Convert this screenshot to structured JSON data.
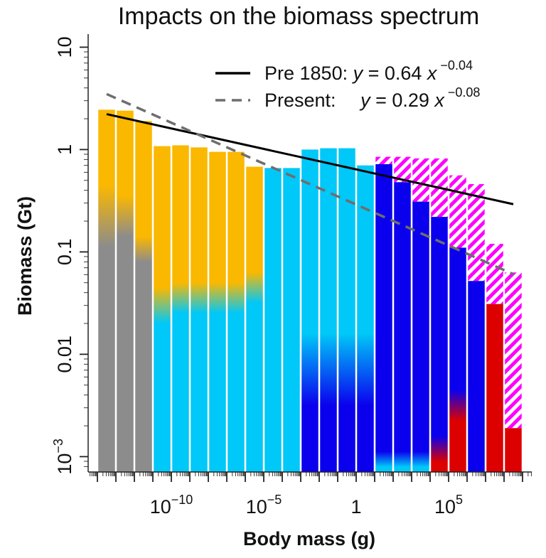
{
  "chart_data": {
    "type": "bar",
    "title": "Impacts on the biomass spectrum",
    "xlabel": "Body mass (g)",
    "ylabel": "Biomass (Gt)",
    "x_scale": "log10",
    "y_scale": "log10",
    "xlim_log10": [
      -14.5,
      9.5
    ],
    "ylim_log10": [
      -3.15,
      1.1
    ],
    "x_ticks": [
      {
        "base": "10",
        "exp": "−10",
        "log": -10
      },
      {
        "base": "10",
        "exp": "−5",
        "log": -5
      },
      {
        "base": "1",
        "exp": "",
        "log": 0
      },
      {
        "base": "10",
        "exp": "5",
        "log": 5
      }
    ],
    "y_ticks": [
      {
        "base": "10",
        "exp": "",
        "log": 1
      },
      {
        "base": "1",
        "exp": "",
        "log": 0
      },
      {
        "base": "0.1",
        "exp": "",
        "log": -1
      },
      {
        "base": "0.01",
        "exp": "",
        "log": -2
      },
      {
        "base": "10",
        "exp": "−3",
        "log": -3
      }
    ],
    "colors": {
      "grey": "#8c8c8c",
      "orange": "#fbb800",
      "cyan": "#00c8f8",
      "blue": "#0a00ee",
      "red": "#dd0000",
      "magenta": "#ff00ff"
    },
    "bars": [
      {
        "log_mass": -13.5,
        "biomass": 2.45,
        "fill": "grey",
        "present": 2.45
      },
      {
        "log_mass": -12.5,
        "biomass": 2.4,
        "fill": "grey",
        "present": 2.4
      },
      {
        "log_mass": -11.5,
        "biomass": 1.9,
        "fill": "orange",
        "present": 1.9
      },
      {
        "log_mass": -10.5,
        "biomass": 1.08,
        "fill": "orange",
        "present": 1.08
      },
      {
        "log_mass": -9.5,
        "biomass": 1.1,
        "fill": "orange",
        "present": 1.1
      },
      {
        "log_mass": -8.5,
        "biomass": 1.05,
        "fill": "orange",
        "present": 1.05
      },
      {
        "log_mass": -7.5,
        "biomass": 0.95,
        "fill": "orange",
        "present": 0.95
      },
      {
        "log_mass": -6.5,
        "biomass": 0.95,
        "fill": "orange",
        "present": 0.95
      },
      {
        "log_mass": -5.5,
        "biomass": 0.68,
        "fill": "orange",
        "present": 0.68
      },
      {
        "log_mass": -4.5,
        "biomass": 0.66,
        "fill": "cyan",
        "present": 0.66
      },
      {
        "log_mass": -3.5,
        "biomass": 0.66,
        "fill": "cyan",
        "present": 0.66
      },
      {
        "log_mass": -2.5,
        "biomass": 1.0,
        "fill": "cyan",
        "present": 1.0
      },
      {
        "log_mass": -1.5,
        "biomass": 1.03,
        "fill": "cyan",
        "present": 1.03
      },
      {
        "log_mass": -0.5,
        "biomass": 1.03,
        "fill": "cyan",
        "present": 1.03
      },
      {
        "log_mass": 0.5,
        "biomass": 0.7,
        "fill": "cyan",
        "present": 0.7
      },
      {
        "log_mass": 1.5,
        "biomass": 0.85,
        "fill": "blue",
        "present": 0.72
      },
      {
        "log_mass": 2.5,
        "biomass": 0.85,
        "fill": "blue",
        "present": 0.48
      },
      {
        "log_mass": 3.5,
        "biomass": 0.82,
        "fill": "blue",
        "present": 0.31
      },
      {
        "log_mass": 4.5,
        "biomass": 0.82,
        "fill": "blue",
        "present": 0.22
      },
      {
        "log_mass": 5.5,
        "biomass": 0.56,
        "fill": "blue",
        "present": 0.11
      },
      {
        "log_mass": 6.5,
        "biomass": 0.46,
        "fill": "blue",
        "present": 0.052
      },
      {
        "log_mass": 7.5,
        "biomass": 0.12,
        "fill": "red",
        "present": 0.031
      },
      {
        "log_mass": 8.5,
        "biomass": 0.063,
        "fill": "red",
        "present": 0.0019
      }
    ],
    "gradients": [
      {
        "bar": 0,
        "from": "grey",
        "to": "orange",
        "fade_log": [
          -0.95,
          -0.35
        ],
        "to_alpha": 0.9
      },
      {
        "bar": 1,
        "from": "grey",
        "to": "orange",
        "fade_log": [
          -0.85,
          -0.45
        ],
        "to_alpha": 0.9
      },
      {
        "bar": 2,
        "from": "grey",
        "to": "orange",
        "fade_log": [
          -1.1,
          -0.85
        ],
        "to_alpha": 1
      },
      {
        "bar": 3,
        "from": "cyan",
        "to": "orange",
        "fade_log": [
          -1.7,
          -1.35
        ],
        "to_alpha": 1
      },
      {
        "bar": 4,
        "from": "cyan",
        "to": "orange",
        "fade_log": [
          -1.6,
          -1.3
        ],
        "to_alpha": 1
      },
      {
        "bar": 5,
        "from": "cyan",
        "to": "orange",
        "fade_log": [
          -1.6,
          -1.3
        ],
        "to_alpha": 1
      },
      {
        "bar": 6,
        "from": "cyan",
        "to": "orange",
        "fade_log": [
          -1.6,
          -1.3
        ],
        "to_alpha": 1
      },
      {
        "bar": 7,
        "from": "cyan",
        "to": "orange",
        "fade_log": [
          -1.6,
          -1.3
        ],
        "to_alpha": 1
      },
      {
        "bar": 8,
        "from": "cyan",
        "to": "orange",
        "fade_log": [
          -1.5,
          -1.2
        ],
        "to_alpha": 1
      },
      {
        "bar": 11,
        "from": "blue",
        "to": "cyan",
        "fade_log": [
          -2.5,
          -1.8
        ],
        "to_alpha": 1
      },
      {
        "bar": 12,
        "from": "blue",
        "to": "cyan",
        "fade_log": [
          -2.5,
          -1.8
        ],
        "to_alpha": 1
      },
      {
        "bar": 13,
        "from": "blue",
        "to": "cyan",
        "fade_log": [
          -2.5,
          -1.8
        ],
        "to_alpha": 1
      },
      {
        "bar": 14,
        "from": "blue",
        "to": "cyan",
        "fade_log": [
          -2.5,
          -1.8
        ],
        "to_alpha": 1
      },
      {
        "bar": 15,
        "from": "cyan",
        "to": "blue",
        "fade_log": [
          -3.1,
          -2.95
        ],
        "to_alpha": 1
      },
      {
        "bar": 16,
        "from": "cyan",
        "to": "blue",
        "fade_log": [
          -3.1,
          -2.95
        ],
        "to_alpha": 1
      },
      {
        "bar": 17,
        "from": "cyan",
        "to": "blue",
        "fade_log": [
          -3.1,
          -2.95
        ],
        "to_alpha": 1
      },
      {
        "bar": 18,
        "from": "red",
        "to": "blue",
        "fade_log": [
          -3.05,
          -2.8
        ],
        "to_alpha": 1
      },
      {
        "bar": 19,
        "from": "red",
        "to": "blue",
        "fade_log": [
          -2.65,
          -2.35
        ],
        "to_alpha": 1
      }
    ],
    "series": [
      {
        "name_prefix": "Pre 1850:",
        "italic_var": "y",
        "eq_mid": "= 0.64",
        "italic_x": "x",
        "exponent": "−0.04",
        "coef": 0.64,
        "slope": -0.04,
        "x_range_log": [
          -13.5,
          8.5
        ],
        "style": "solid",
        "color": "#000000"
      },
      {
        "name_prefix": "Present:",
        "italic_var": "y",
        "eq_mid": "= 0.29",
        "italic_x": "x",
        "exponent": "−0.08",
        "coef": 0.29,
        "slope": -0.08,
        "x_range_log": [
          -13.5,
          8.5
        ],
        "style": "dashed",
        "color": "#6e6e6e"
      }
    ],
    "legend_position": "top-right",
    "grid": false
  }
}
